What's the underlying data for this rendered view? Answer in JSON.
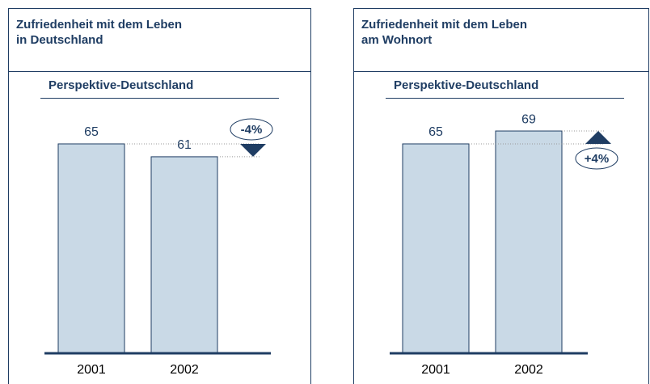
{
  "chart_data": [
    {
      "type": "bar",
      "title": [
        "Zufriedenheit mit dem Leben",
        "in Deutschland"
      ],
      "subtitle": "Perspektive-Deutschland",
      "categories": [
        "2001",
        "2002"
      ],
      "values": [
        65,
        61
      ],
      "annotation": "-4%",
      "color": "#c9d9e6"
    },
    {
      "type": "bar",
      "title": [
        "Zufriedenheit mit dem Leben",
        "am Wohnort"
      ],
      "subtitle": "Perspektive-Deutschland",
      "categories": [
        "2001",
        "2002"
      ],
      "values": [
        65,
        69
      ],
      "annotation": "+4%",
      "color": "#c9d9e6"
    }
  ]
}
